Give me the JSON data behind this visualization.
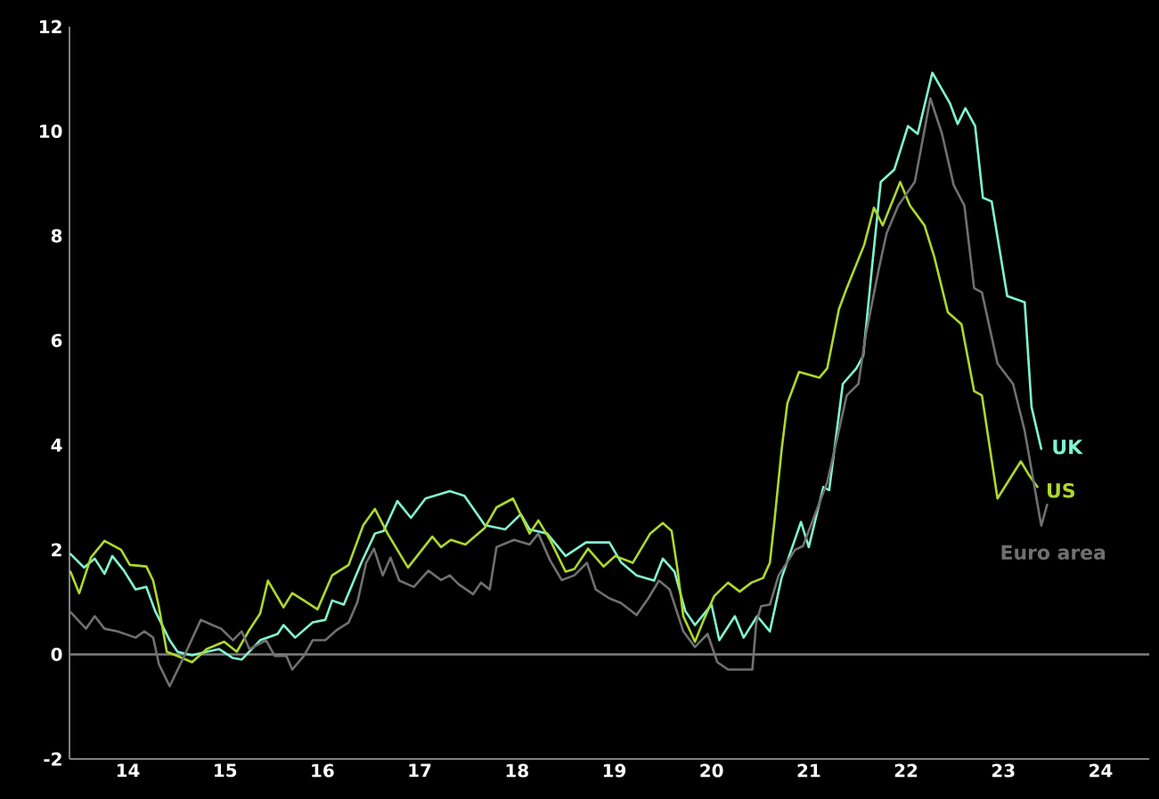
{
  "chart_data": {
    "type": "line",
    "xlim": [
      13.4,
      24.5
    ],
    "ylim": [
      -2,
      12
    ],
    "xticks": [
      14,
      15,
      16,
      17,
      18,
      19,
      20,
      21,
      22,
      23,
      24
    ],
    "yticks": [
      -2,
      0,
      2,
      4,
      6,
      8,
      10,
      12
    ],
    "ref_lines": [
      {
        "axis": "y",
        "value": 0,
        "color": "#808080"
      }
    ],
    "series": [
      {
        "name": "UK",
        "color": "#80f5cf",
        "x": [
          13.41,
          13.55,
          13.66,
          13.76,
          13.84,
          13.96,
          14.08,
          14.19,
          14.28,
          14.43,
          14.51,
          14.66,
          14.81,
          14.94,
          15.08,
          15.17,
          15.36,
          15.54,
          15.6,
          15.72,
          15.9,
          16.03,
          16.1,
          16.22,
          16.4,
          16.54,
          16.63,
          16.77,
          16.91,
          17.06,
          17.31,
          17.46,
          17.67,
          17.88,
          18.04,
          18.13,
          18.31,
          18.5,
          18.71,
          18.95,
          19.07,
          19.23,
          19.41,
          19.5,
          19.62,
          19.73,
          19.83,
          20.0,
          20.08,
          20.24,
          20.33,
          20.47,
          20.6,
          20.72,
          20.92,
          21.0,
          21.15,
          21.21,
          21.35,
          21.49,
          21.56,
          21.65,
          21.74,
          21.88,
          22.02,
          22.12,
          22.27,
          22.45,
          22.53,
          22.61,
          22.71,
          22.79,
          22.88,
          23.04,
          23.22,
          23.29,
          23.39
        ],
        "values": [
          1.92,
          1.66,
          1.83,
          1.54,
          1.88,
          1.6,
          1.24,
          1.29,
          0.83,
          0.27,
          0.05,
          -0.02,
          0.05,
          0.1,
          -0.07,
          -0.1,
          0.27,
          0.39,
          0.56,
          0.32,
          0.61,
          0.66,
          1.03,
          0.95,
          1.75,
          2.31,
          2.36,
          2.93,
          2.61,
          2.98,
          3.12,
          3.03,
          2.47,
          2.39,
          2.68,
          2.39,
          2.31,
          1.88,
          2.14,
          2.14,
          1.76,
          1.51,
          1.41,
          1.83,
          1.58,
          0.83,
          0.56,
          0.95,
          0.27,
          0.73,
          0.32,
          0.73,
          0.44,
          1.46,
          2.53,
          2.05,
          3.2,
          3.14,
          5.17,
          5.47,
          5.71,
          7.4,
          9.03,
          9.27,
          10.1,
          9.95,
          11.12,
          10.54,
          10.14,
          10.44,
          10.1,
          8.73,
          8.66,
          6.85,
          6.73,
          4.73,
          3.93
        ]
      },
      {
        "name": "US",
        "color": "#aed82c",
        "x": [
          13.41,
          13.5,
          13.62,
          13.76,
          13.93,
          14.02,
          14.19,
          14.26,
          14.32,
          14.4,
          14.51,
          14.66,
          14.81,
          14.99,
          15.12,
          15.24,
          15.36,
          15.44,
          15.6,
          15.69,
          15.81,
          15.95,
          16.1,
          16.27,
          16.42,
          16.54,
          16.67,
          16.88,
          17.13,
          17.22,
          17.32,
          17.47,
          17.67,
          17.79,
          17.96,
          18.13,
          18.22,
          18.34,
          18.5,
          18.59,
          18.73,
          18.89,
          19.01,
          19.19,
          19.37,
          19.5,
          19.59,
          19.65,
          19.71,
          19.83,
          19.92,
          20.03,
          20.17,
          20.29,
          20.41,
          20.53,
          20.6,
          20.65,
          20.72,
          20.78,
          20.9,
          21.11,
          21.19,
          21.31,
          21.39,
          21.57,
          21.67,
          21.76,
          21.94,
          22.04,
          22.19,
          22.29,
          22.43,
          22.57,
          22.7,
          22.78,
          22.94,
          23.18,
          23.26,
          23.35
        ],
        "values": [
          1.58,
          1.17,
          1.85,
          2.17,
          2.0,
          1.71,
          1.68,
          1.41,
          0.9,
          0.05,
          -0.03,
          -0.15,
          0.1,
          0.24,
          0.05,
          0.44,
          0.78,
          1.41,
          0.9,
          1.17,
          1.03,
          0.86,
          1.51,
          1.71,
          2.47,
          2.78,
          2.31,
          1.66,
          2.25,
          2.05,
          2.19,
          2.1,
          2.42,
          2.81,
          2.98,
          2.31,
          2.56,
          2.19,
          1.58,
          1.63,
          2.02,
          1.68,
          1.88,
          1.75,
          2.31,
          2.51,
          2.36,
          1.63,
          0.73,
          0.24,
          0.66,
          1.12,
          1.37,
          1.2,
          1.37,
          1.46,
          1.75,
          2.6,
          3.9,
          4.8,
          5.4,
          5.29,
          5.47,
          6.6,
          7.0,
          7.83,
          8.54,
          8.2,
          9.03,
          8.58,
          8.2,
          7.6,
          6.54,
          6.31,
          5.03,
          4.95,
          2.98,
          3.69,
          3.44,
          3.2
        ]
      },
      {
        "name": "Euro area",
        "color": "#707070",
        "x": [
          13.41,
          13.57,
          13.66,
          13.76,
          13.89,
          14.08,
          14.17,
          14.26,
          14.32,
          14.43,
          14.57,
          14.75,
          14.87,
          14.96,
          15.08,
          15.17,
          15.25,
          15.42,
          15.51,
          15.63,
          15.69,
          15.81,
          15.9,
          16.03,
          16.15,
          16.27,
          16.36,
          16.45,
          16.53,
          16.62,
          16.7,
          16.79,
          16.94,
          17.09,
          17.22,
          17.31,
          17.4,
          17.55,
          17.63,
          17.72,
          17.79,
          17.97,
          18.13,
          18.22,
          18.34,
          18.46,
          18.59,
          18.72,
          18.81,
          18.95,
          19.07,
          19.23,
          19.35,
          19.46,
          19.57,
          19.71,
          19.83,
          19.96,
          20.06,
          20.17,
          20.42,
          20.46,
          20.51,
          20.6,
          20.69,
          20.86,
          20.94,
          21.19,
          21.39,
          21.51,
          21.59,
          21.72,
          21.8,
          21.92,
          22.09,
          22.25,
          22.37,
          22.49,
          22.6,
          22.7,
          22.78,
          22.94,
          23.1,
          23.22,
          23.39,
          23.45
        ],
        "values": [
          0.81,
          0.49,
          0.73,
          0.49,
          0.44,
          0.32,
          0.44,
          0.32,
          -0.19,
          -0.61,
          -0.07,
          0.66,
          0.56,
          0.49,
          0.27,
          0.44,
          0.1,
          0.27,
          -0.03,
          -0.03,
          -0.29,
          -0.03,
          0.27,
          0.27,
          0.47,
          0.61,
          1.0,
          1.75,
          2.02,
          1.51,
          1.85,
          1.41,
          1.29,
          1.6,
          1.42,
          1.51,
          1.34,
          1.15,
          1.37,
          1.24,
          2.05,
          2.19,
          2.1,
          2.31,
          1.8,
          1.42,
          1.51,
          1.75,
          1.24,
          1.07,
          0.98,
          0.75,
          1.07,
          1.41,
          1.24,
          0.44,
          0.14,
          0.39,
          -0.15,
          -0.29,
          -0.29,
          0.61,
          0.92,
          0.95,
          1.51,
          2.0,
          2.07,
          3.29,
          4.95,
          5.17,
          6.15,
          7.37,
          8.05,
          8.58,
          9.03,
          10.63,
          9.95,
          8.97,
          8.58,
          7.0,
          6.92,
          5.56,
          5.17,
          4.27,
          2.46,
          2.86
        ]
      }
    ]
  }
}
